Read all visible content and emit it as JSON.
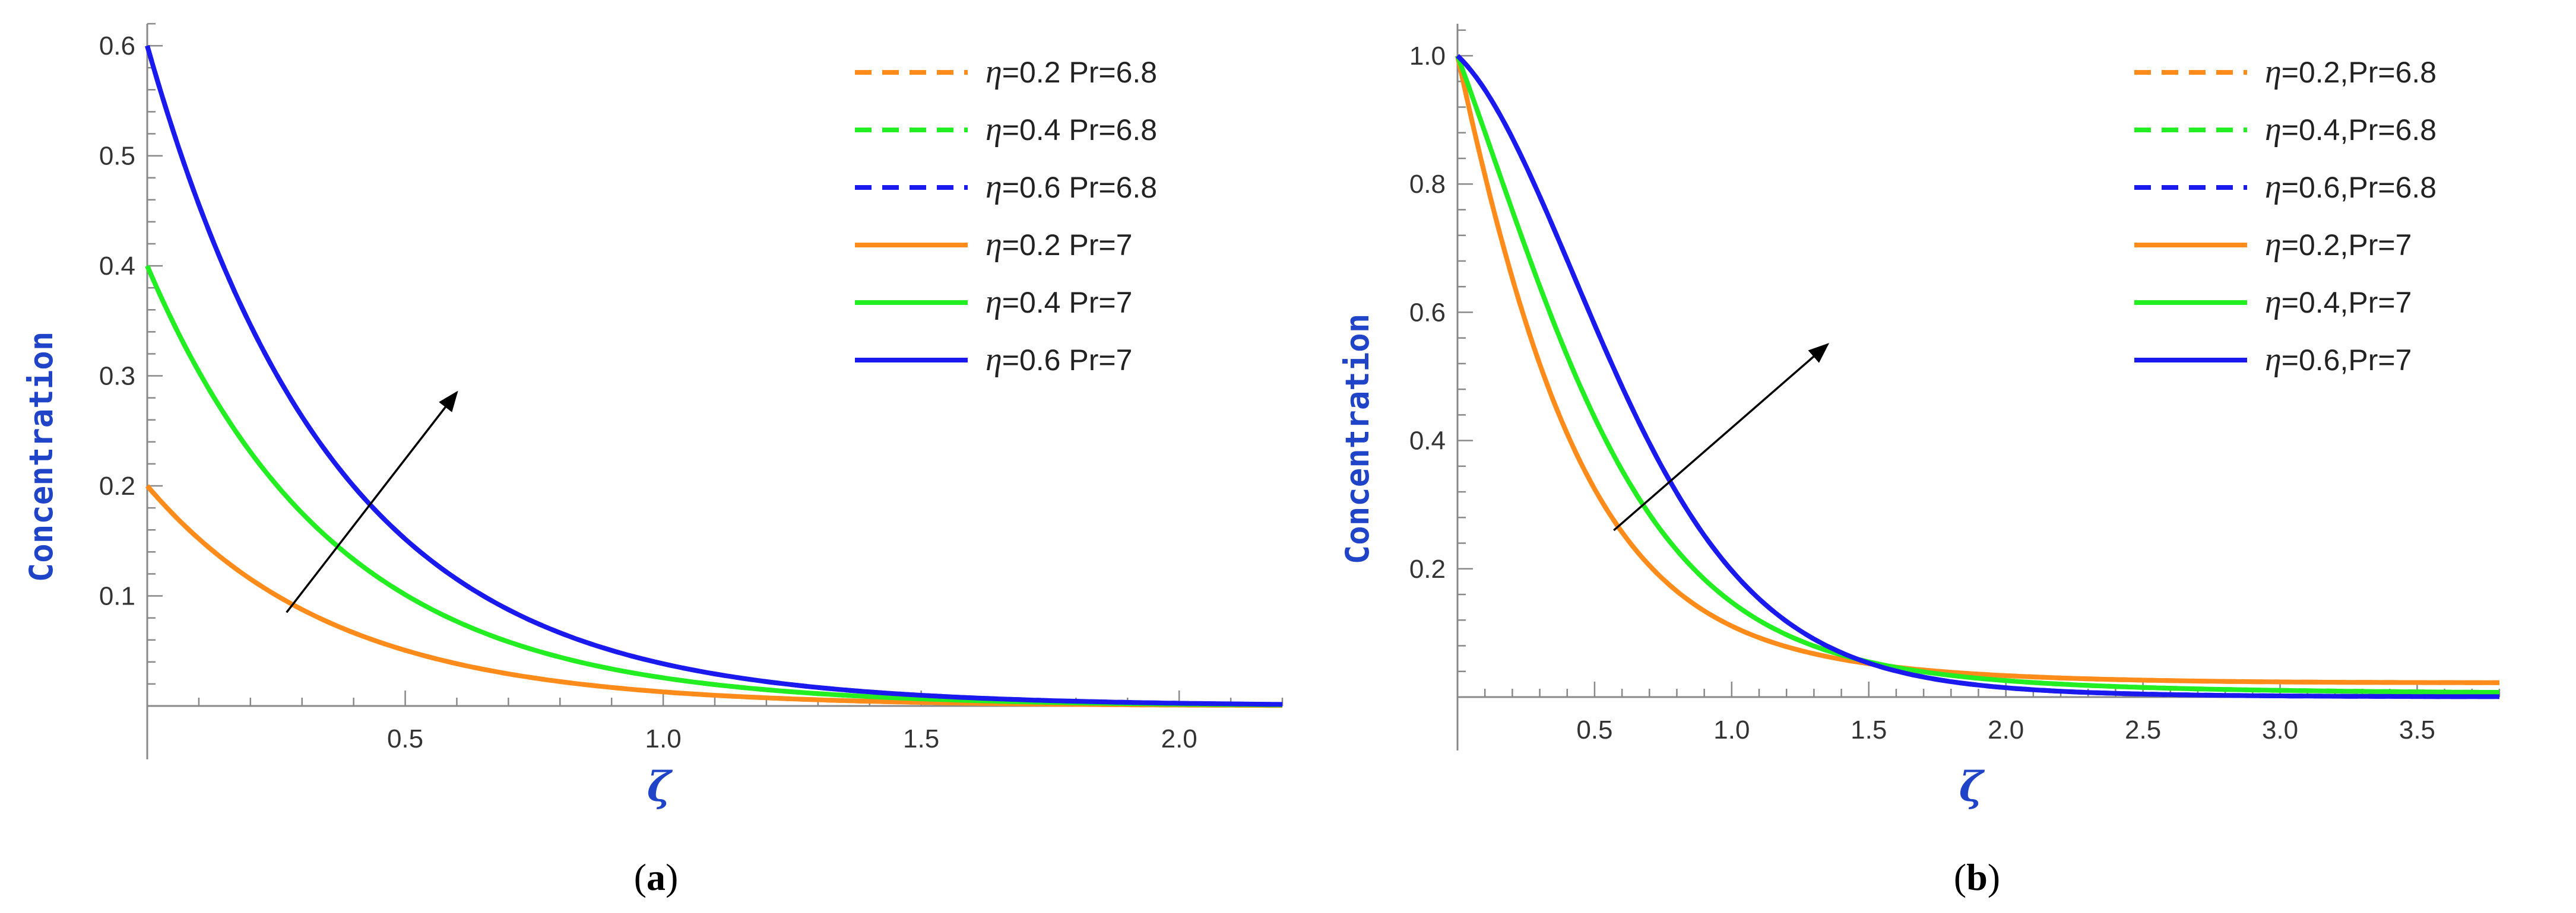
{
  "chart_data": [
    {
      "type": "line",
      "panel_label": "a",
      "panel_caption": "(a)",
      "xlabel": "ζ",
      "ylabel": "Concentration",
      "xlim": [
        0,
        2.2
      ],
      "ylim": [
        0,
        0.62
      ],
      "x_ticks": [
        0.5,
        1.0,
        1.5,
        2.0
      ],
      "x_tick_labels": [
        "0.5",
        "1.0",
        "1.5",
        "2.0"
      ],
      "y_ticks": [
        0.1,
        0.2,
        0.3,
        0.4,
        0.5,
        0.6
      ],
      "y_tick_labels": [
        "0.1",
        "0.2",
        "0.3",
        "0.4",
        "0.5",
        "0.6"
      ],
      "annotation_arrow": {
        "from": [
          0.27,
          0.085
        ],
        "to": [
          0.6,
          0.285
        ]
      },
      "series": [
        {
          "name": "η=0.2 Pr=6.8",
          "eta": "η",
          "text": "=0.2 Pr=6.8",
          "color": "#ff8c1a",
          "dash": true,
          "y0": 0.2,
          "decay": 2.75
        },
        {
          "name": "η=0.4 Pr=6.8",
          "eta": "η",
          "text": "=0.4 Pr=6.8",
          "color": "#22ee22",
          "dash": true,
          "y0": 0.4,
          "decay": 2.75
        },
        {
          "name": "η=0.6 Pr=6.8",
          "eta": "η",
          "text": "=0.6 Pr=6.8",
          "color": "#1a1aee",
          "dash": true,
          "y0": 0.6,
          "decay": 2.75
        },
        {
          "name": "η=0.2 Pr=7",
          "eta": "η",
          "text": "=0.2 Pr=7",
          "color": "#ff8c1a",
          "dash": false,
          "y0": 0.2,
          "decay": 2.75
        },
        {
          "name": "η=0.4 Pr=7",
          "eta": "η",
          "text": "=0.4 Pr=7",
          "color": "#22ee22",
          "dash": false,
          "y0": 0.4,
          "decay": 2.75
        },
        {
          "name": "η=0.6 Pr=7",
          "eta": "η",
          "text": "=0.6 Pr=7",
          "color": "#1a1aee",
          "dash": false,
          "y0": 0.6,
          "decay": 2.75
        }
      ]
    },
    {
      "type": "line",
      "panel_label": "b",
      "panel_caption": "(b)",
      "xlabel": "ζ",
      "ylabel": "Concentration",
      "xlim": [
        0,
        3.8
      ],
      "ylim": [
        0,
        1.05
      ],
      "x_ticks": [
        0.5,
        1.0,
        1.5,
        2.0,
        2.5,
        3.0,
        3.5
      ],
      "x_tick_labels": [
        "0.5",
        "1.0",
        "1.5",
        "2.0",
        "2.5",
        "3.0",
        "3.5"
      ],
      "y_ticks": [
        0.2,
        0.4,
        0.6,
        0.8,
        1.0
      ],
      "y_tick_labels": [
        "0.2",
        "0.4",
        "0.6",
        "0.8",
        "1.0"
      ],
      "annotation_arrow": {
        "from": [
          0.57,
          0.26
        ],
        "to": [
          1.35,
          0.55
        ]
      },
      "series": [
        {
          "name": "η=0.2,Pr=6.8",
          "eta": "η",
          "text": "=0.2,Pr=6.8",
          "color": "#ff8c1a",
          "dash": true,
          "k1": 1.98,
          "k2": 0.88,
          "k3": 0.3
        },
        {
          "name": "η=0.4,Pr=6.8",
          "eta": "η",
          "text": "=0.4,Pr=6.8",
          "color": "#22ee22",
          "dash": true,
          "k1": 1.15,
          "k2": 1.22,
          "k3": 0.24
        },
        {
          "name": "η=0.6,Pr=6.8",
          "eta": "η",
          "text": "=0.6,Pr=6.8",
          "color": "#1a1aee",
          "dash": true,
          "k1": 0.4,
          "k2": 1.45,
          "k3": 0.14
        },
        {
          "name": "η=0.2,Pr=7",
          "eta": "η",
          "text": "=0.2,Pr=7",
          "color": "#ff8c1a",
          "dash": false,
          "k1": 1.98,
          "k2": 0.88,
          "k3": 0.3
        },
        {
          "name": "η=0.4,Pr=7",
          "eta": "η",
          "text": "=0.4,Pr=7",
          "color": "#22ee22",
          "dash": false,
          "k1": 1.15,
          "k2": 1.22,
          "k3": 0.24
        },
        {
          "name": "η=0.6,Pr=7",
          "eta": "η",
          "text": "=0.6,Pr=7",
          "color": "#1a1aee",
          "dash": false,
          "k1": 0.4,
          "k2": 1.45,
          "k3": 0.14
        }
      ]
    }
  ]
}
